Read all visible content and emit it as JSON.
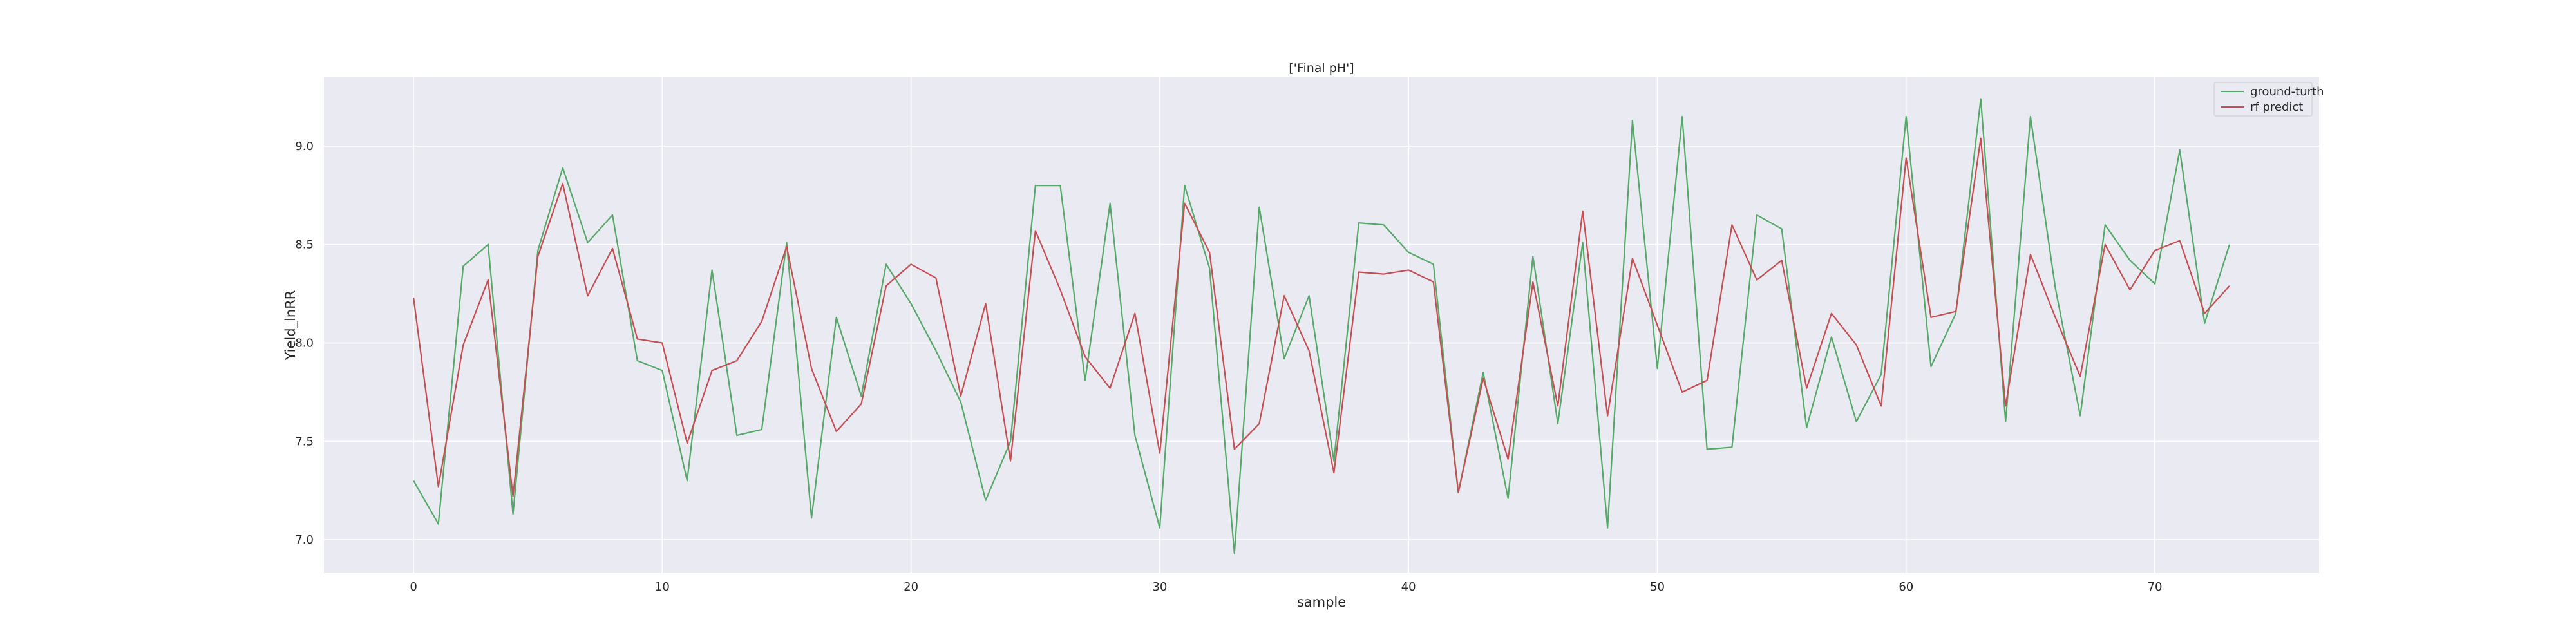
{
  "chart_data": {
    "type": "line",
    "title": "['Final pH']",
    "xlabel": "sample",
    "ylabel": "Yield_lnRR",
    "xlim": [
      -3.6,
      76.6
    ],
    "ylim": [
      6.83,
      9.35
    ],
    "xticks": [
      0,
      10,
      20,
      30,
      40,
      50,
      60,
      70
    ],
    "yticks": [
      7.0,
      7.5,
      8.0,
      8.5,
      9.0
    ],
    "ytick_labels": [
      "7.0",
      "7.5",
      "8.0",
      "8.5",
      "9.0"
    ],
    "grid": true,
    "legend": "top-right",
    "x": [
      0,
      1,
      2,
      3,
      4,
      5,
      6,
      7,
      8,
      9,
      10,
      11,
      12,
      13,
      14,
      15,
      16,
      17,
      18,
      19,
      20,
      21,
      22,
      23,
      24,
      25,
      26,
      27,
      28,
      29,
      30,
      31,
      32,
      33,
      34,
      35,
      36,
      37,
      38,
      39,
      40,
      41,
      42,
      43,
      44,
      45,
      46,
      47,
      48,
      49,
      50,
      51,
      52,
      53,
      54,
      55,
      56,
      57,
      58,
      59,
      60,
      61,
      62,
      63,
      64,
      65,
      66,
      67,
      68,
      69,
      70,
      71,
      72,
      73
    ],
    "series": [
      {
        "name": "ground-turth",
        "color": "#55a868",
        "values": [
          7.3,
          7.08,
          8.39,
          8.5,
          7.13,
          8.47,
          8.89,
          8.51,
          8.65,
          7.91,
          7.86,
          7.3,
          8.37,
          7.53,
          7.56,
          8.51,
          7.11,
          8.13,
          7.73,
          8.4,
          8.2,
          7.96,
          7.7,
          7.2,
          7.5,
          8.8,
          8.8,
          7.81,
          8.71,
          7.53,
          7.06,
          8.8,
          8.38,
          6.93,
          8.69,
          7.92,
          8.24,
          7.4,
          8.61,
          8.6,
          8.46,
          8.4,
          7.24,
          7.85,
          7.21,
          8.44,
          7.59,
          8.51,
          7.06,
          9.13,
          7.87,
          9.15,
          7.46,
          7.47,
          8.65,
          8.58,
          7.57,
          8.03,
          7.6,
          7.84,
          9.15,
          7.88,
          8.15,
          9.24,
          7.6,
          9.15,
          8.28,
          7.63,
          8.6,
          8.42,
          8.3,
          8.98,
          8.1,
          8.5
        ]
      },
      {
        "name": "rf predict",
        "color": "#c44e52",
        "values": [
          8.23,
          7.27,
          7.99,
          8.32,
          7.22,
          8.44,
          8.81,
          8.24,
          8.48,
          8.02,
          8.0,
          7.49,
          7.86,
          7.91,
          8.11,
          8.49,
          7.87,
          7.55,
          7.69,
          8.29,
          8.4,
          8.33,
          7.73,
          8.2,
          7.4,
          8.57,
          8.27,
          7.93,
          7.77,
          8.15,
          7.44,
          8.71,
          8.46,
          7.46,
          7.59,
          8.24,
          7.96,
          7.34,
          8.36,
          8.35,
          8.37,
          8.31,
          7.24,
          7.82,
          7.41,
          8.31,
          7.68,
          8.67,
          7.63,
          8.43,
          8.09,
          7.75,
          7.81,
          8.6,
          8.32,
          8.42,
          7.77,
          8.15,
          7.99,
          7.68,
          8.94,
          8.13,
          8.16,
          9.04,
          7.68,
          8.45,
          8.13,
          7.83,
          8.5,
          8.27,
          8.47,
          8.52,
          8.15,
          8.29
        ]
      }
    ]
  }
}
